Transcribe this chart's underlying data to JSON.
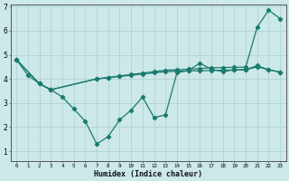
{
  "xlabel": "Humidex (Indice chaleur)",
  "xlim": [
    -0.5,
    23.5
  ],
  "ylim": [
    0.6,
    7.1
  ],
  "yticks": [
    1,
    2,
    3,
    4,
    5,
    6,
    7
  ],
  "xtick_labels": [
    "0",
    "1",
    "2",
    "3",
    "4",
    "5",
    "6",
    "7",
    "8",
    "9",
    "10",
    "11",
    "12",
    "13",
    "14",
    "15",
    "16",
    "17",
    "18",
    "19",
    "20",
    "21",
    "22",
    "23"
  ],
  "bg_color": "#cce8e8",
  "line_color": "#1a7a6e",
  "grid_color": "#aacfcf",
  "s1_x": [
    0,
    1,
    2,
    3,
    4,
    5,
    6,
    7,
    8,
    9,
    10,
    11,
    12,
    13,
    14,
    15,
    16,
    17,
    18,
    19,
    20,
    21,
    22,
    23
  ],
  "s1_y": [
    4.8,
    4.15,
    3.8,
    3.55,
    3.25,
    2.75,
    2.25,
    1.3,
    1.6,
    2.3,
    2.7,
    3.25,
    2.4,
    2.5,
    4.25,
    4.35,
    4.65,
    4.4,
    4.3,
    4.38,
    4.38,
    4.55,
    4.38,
    4.28
  ],
  "s2_x": [
    0,
    2,
    3,
    7,
    8,
    9,
    10,
    11,
    12,
    13,
    14,
    15,
    16,
    17,
    18,
    19,
    20,
    21,
    22,
    23
  ],
  "s2_y": [
    4.8,
    3.8,
    3.55,
    4.0,
    4.06,
    4.12,
    4.18,
    4.24,
    4.3,
    4.36,
    4.38,
    4.4,
    4.43,
    4.46,
    4.47,
    4.48,
    4.49,
    6.15,
    6.85,
    6.5
  ],
  "s3_x": [
    0,
    2,
    3,
    7,
    8,
    9,
    10,
    11,
    12,
    13,
    14,
    15,
    16,
    17,
    18,
    19,
    20,
    21,
    22,
    23
  ],
  "s3_y": [
    4.8,
    3.8,
    3.55,
    4.0,
    4.05,
    4.1,
    4.15,
    4.2,
    4.25,
    4.3,
    4.32,
    4.33,
    4.34,
    4.35,
    4.36,
    4.37,
    4.38,
    4.5,
    4.38,
    4.28
  ]
}
